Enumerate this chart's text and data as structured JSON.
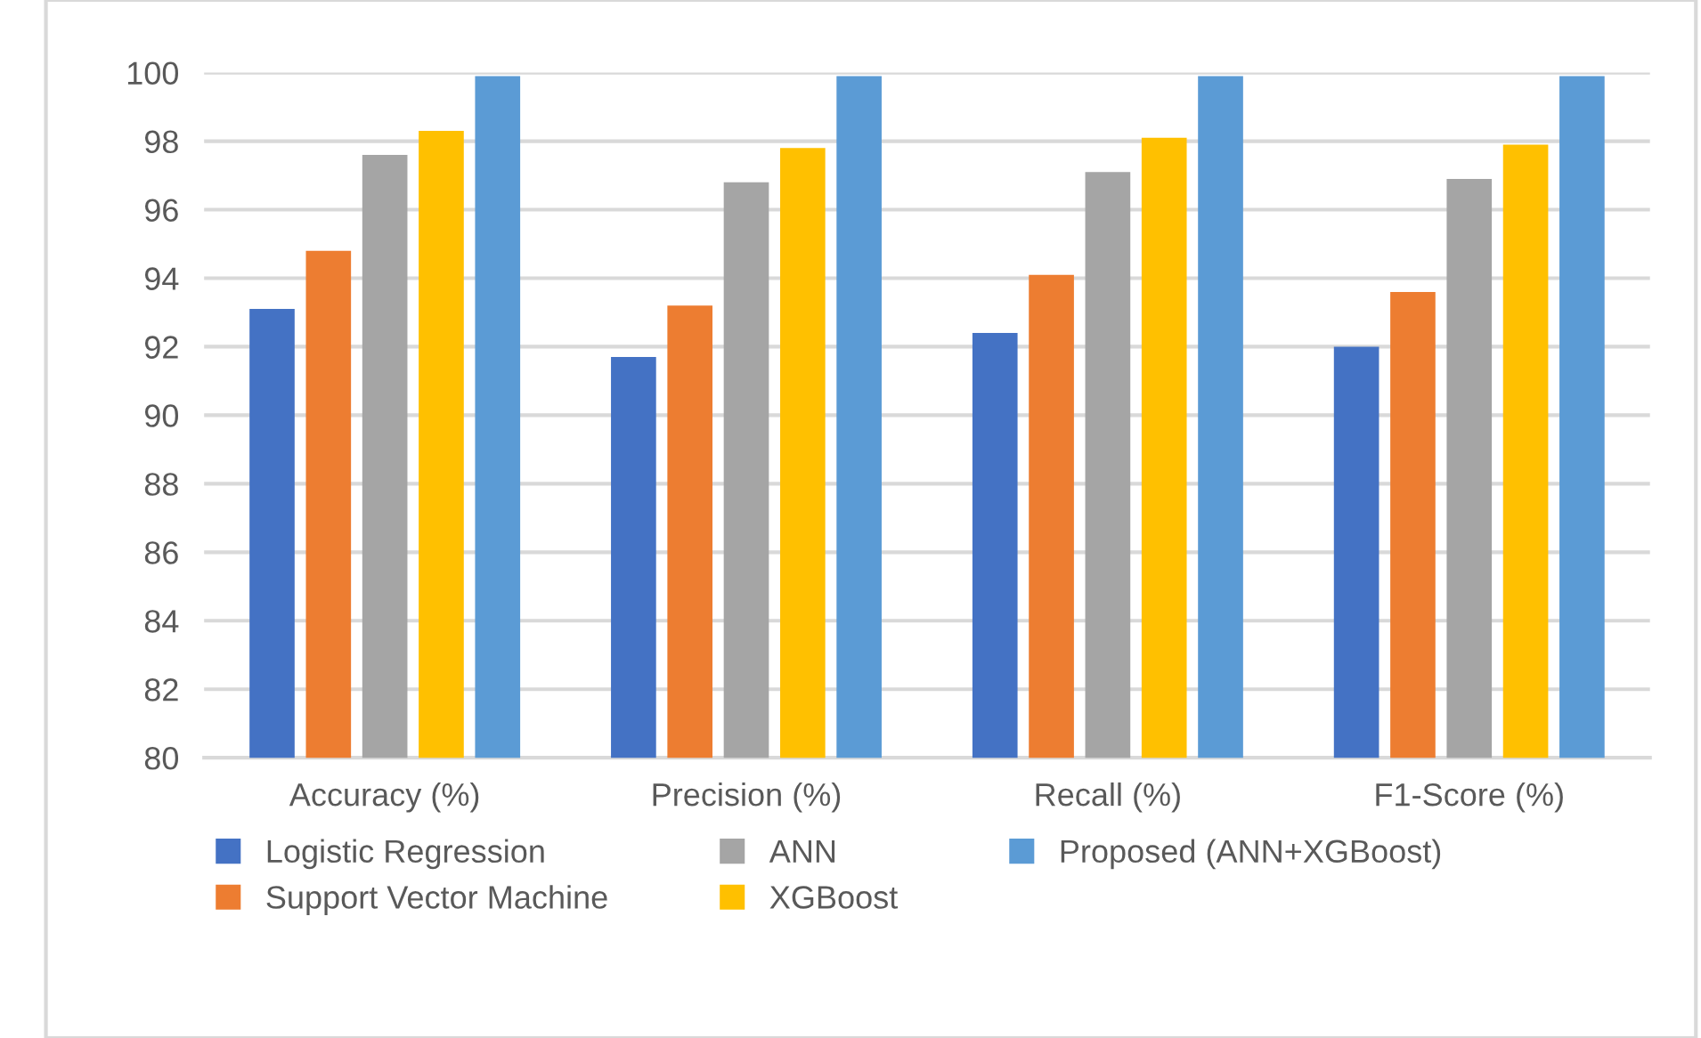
{
  "chart_data": {
    "type": "bar",
    "categories": [
      "Accuracy (%)",
      "Precision (%)",
      "Recall (%)",
      "F1-Score (%)"
    ],
    "series": [
      {
        "name": "Logistic Regression",
        "color": "#4472c4",
        "values": [
          93.1,
          91.7,
          92.4,
          92.0
        ]
      },
      {
        "name": "Support Vector Machine",
        "color": "#ed7d31",
        "values": [
          94.8,
          93.2,
          94.1,
          93.6
        ]
      },
      {
        "name": "ANN",
        "color": "#a5a5a5",
        "values": [
          97.6,
          96.8,
          97.1,
          96.9
        ]
      },
      {
        "name": "XGBoost",
        "color": "#ffc000",
        "values": [
          98.3,
          97.8,
          98.1,
          97.9
        ]
      },
      {
        "name": "Proposed (ANN+XGBoost)",
        "color": "#5b9bd5",
        "values": [
          99.9,
          99.9,
          99.9,
          99.9
        ]
      }
    ],
    "ylim": [
      80,
      100
    ],
    "yticks": [
      80,
      82,
      84,
      86,
      88,
      90,
      92,
      94,
      96,
      98,
      100
    ],
    "grid": "y",
    "legend": "bottom"
  }
}
